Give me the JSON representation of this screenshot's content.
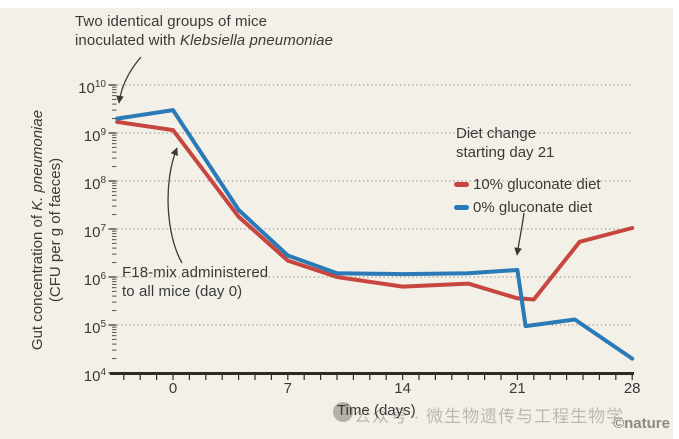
{
  "colors": {
    "background": "#f2f0e7",
    "red": "#c8463f",
    "blue": "#2a7ab8",
    "text": "#3a3a3a",
    "grid": "#8f8d83",
    "axis": "#2d2b26",
    "watermark": "#bdb9ae",
    "nature_gray": "#8d8a85"
  },
  "annotations": {
    "top_line1": "Two identical groups of mice",
    "top_line2_prefix": "inoculated with ",
    "top_line2_italic": "Klebsiella pneumoniae",
    "f18_line1": "F18-mix administered",
    "f18_line2": "to all mice (day 0)",
    "legend_title_line1": "Diet change",
    "legend_title_line2": "starting day 21"
  },
  "legend": {
    "items": [
      {
        "label": "10% gluconate diet",
        "color_key": "red"
      },
      {
        "label": "0% gluconate diet",
        "color_key": "blue"
      }
    ]
  },
  "y_axis": {
    "label_line1_prefix": "Gut concentration of ",
    "label_line1_italic": "K. pneumoniae",
    "label_line2": "(CFU per g of faeces)",
    "tick_exponents": [
      4,
      5,
      6,
      7,
      8,
      9,
      10
    ]
  },
  "x_axis": {
    "label": "Time (days)",
    "ticks": [
      0,
      7,
      14,
      21,
      28
    ],
    "minor_tick_start": -3,
    "minor_tick_end": 28
  },
  "watermark": {
    "text": "公众号 · 微生物遗传与工程生物学",
    "nature": "©nature"
  },
  "chart_data": {
    "type": "line",
    "title": "",
    "xlabel": "Time (days)",
    "ylabel": "Gut concentration of K. pneumoniae (CFU per g of faeces)",
    "x_range": [
      -3.5,
      28
    ],
    "y_scale": "log10",
    "y_range": [
      10000.0,
      10000000000.0
    ],
    "grid": "horizontal-dotted",
    "legend_position": "upper-right",
    "series": [
      {
        "name": "10% gluconate diet",
        "color": "#c8463f",
        "points": [
          [
            -3.4,
            1700000000.0
          ],
          [
            0,
            1150000000.0
          ],
          [
            4,
            18000000.0
          ],
          [
            7,
            2200000.0
          ],
          [
            10,
            1000000.0
          ],
          [
            14,
            630000.0
          ],
          [
            18,
            730000.0
          ],
          [
            21,
            360000.0
          ],
          [
            22,
            340000.0
          ],
          [
            24.8,
            5400000.0
          ],
          [
            28,
            10500000.0
          ]
        ]
      },
      {
        "name": "0% gluconate diet",
        "color": "#2a7ab8",
        "points": [
          [
            -3.4,
            2000000000.0
          ],
          [
            0,
            3000000000.0
          ],
          [
            4,
            25000000.0
          ],
          [
            7,
            2800000.0
          ],
          [
            10,
            1200000.0
          ],
          [
            14,
            1150000.0
          ],
          [
            18,
            1200000.0
          ],
          [
            21,
            1400000.0
          ],
          [
            21.5,
            95000.0
          ],
          [
            24.5,
            130000.0
          ],
          [
            28,
            20000.0
          ]
        ]
      }
    ]
  }
}
